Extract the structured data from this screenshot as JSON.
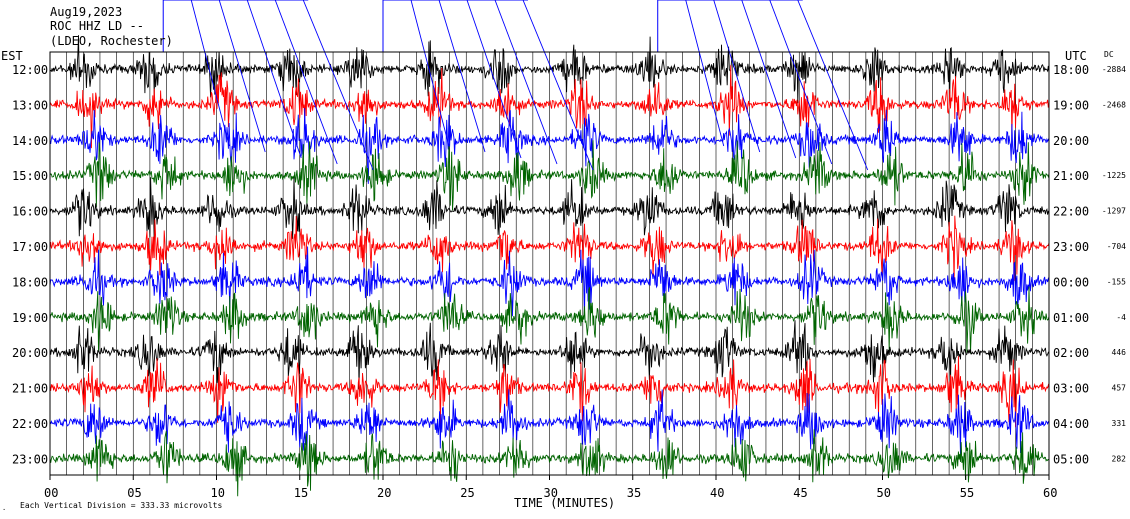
{
  "header": {
    "date": "Aug19,2023",
    "station": "ROC HHZ LD --",
    "network": "(LDEO, Rochester)"
  },
  "footer": {
    "scale_note": "Each Vertical Division = 333.33 microvolts"
  },
  "colors": {
    "trace_cycle": [
      "#000000",
      "#ff0000",
      "#0000ff",
      "#006400"
    ],
    "grid": "#000000",
    "background": "#ffffff"
  },
  "chart_data": {
    "type": "line",
    "title": "ROC HHZ LD --",
    "subtitle": "Aug19,2023",
    "xlabel": "TIME (MINUTES)",
    "left_axis_label": "EST",
    "right_axis_label": "UTC",
    "dc_label": "DC",
    "x_ticks": [
      "00",
      "05",
      "10",
      "15",
      "20",
      "25",
      "30",
      "35",
      "40",
      "45",
      "50",
      "55",
      "60"
    ],
    "xlim": [
      0,
      60
    ],
    "grid": true,
    "rows": [
      {
        "est": "12:00",
        "utc": "18:00",
        "dc": "-2884",
        "color": "black"
      },
      {
        "est": "13:00",
        "utc": "19:00",
        "dc": "-2468",
        "color": "red"
      },
      {
        "est": "14:00",
        "utc": "20:00",
        "dc": "",
        "color": "blue"
      },
      {
        "est": "15:00",
        "utc": "21:00",
        "dc": "-1225",
        "color": "green"
      },
      {
        "est": "16:00",
        "utc": "22:00",
        "dc": "-1297",
        "color": "black"
      },
      {
        "est": "17:00",
        "utc": "23:00",
        "dc": "-704",
        "color": "red"
      },
      {
        "est": "18:00",
        "utc": "00:00",
        "dc": "-155",
        "color": "blue"
      },
      {
        "est": "19:00",
        "utc": "01:00",
        "dc": "-4",
        "color": "green"
      },
      {
        "est": "20:00",
        "utc": "02:00",
        "dc": "446",
        "color": "black"
      },
      {
        "est": "21:00",
        "utc": "03:00",
        "dc": "457",
        "color": "red"
      },
      {
        "est": "22:00",
        "utc": "04:00",
        "dc": "331",
        "color": "blue"
      },
      {
        "est": "23:00",
        "utc": "05:00",
        "dc": "282",
        "color": "green"
      }
    ],
    "burst_minutes": [
      2,
      6,
      10,
      14.5,
      18.5,
      23,
      27,
      31.5,
      36,
      40.5,
      45,
      49.5,
      54,
      57.5
    ]
  }
}
